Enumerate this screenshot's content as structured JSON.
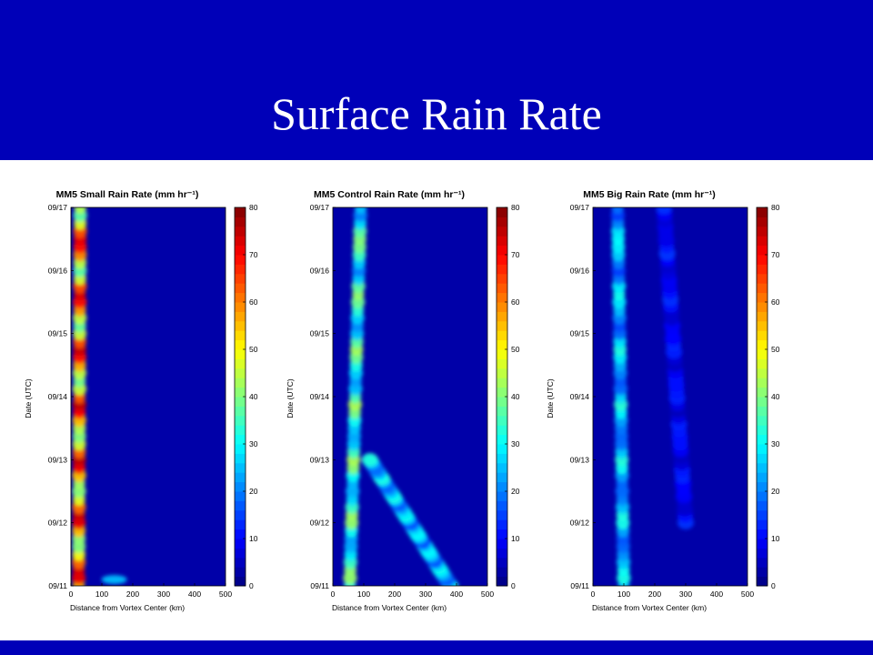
{
  "slide": {
    "title": "Surface Rain Rate",
    "band_color": "#0000b8"
  },
  "chart_data": [
    {
      "type": "heatmap",
      "title": "MM5 Small Rain Rate (mm hr⁻¹)",
      "xlabel": "Distance from Vortex Center (km)",
      "ylabel": "Date (UTC)",
      "xlim": [
        0,
        500
      ],
      "x_ticks": [
        "0",
        "100",
        "200",
        "300",
        "400",
        "500"
      ],
      "y_ticks": [
        "09/11",
        "09/12",
        "09/13",
        "09/14",
        "09/15",
        "09/16",
        "09/17"
      ],
      "colorbar": {
        "min": 0,
        "max": 80,
        "ticks": [
          "0",
          "10",
          "20",
          "30",
          "40",
          "50",
          "60",
          "70",
          "80"
        ]
      },
      "features": [
        {
          "desc": "eyewall band",
          "date": [
            "09/11",
            "09/17"
          ],
          "distance_km": [
            25,
            30
          ],
          "rain_rate": 70
        },
        {
          "desc": "early outer burst",
          "date": "09/11",
          "distance_km": 140,
          "rain_rate": 25
        }
      ]
    },
    {
      "type": "heatmap",
      "title": "MM5 Control Rain Rate (mm hr⁻¹)",
      "xlabel": "Distance from Vortex Center (km)",
      "ylabel": "Date (UTC)",
      "xlim": [
        0,
        500
      ],
      "x_ticks": [
        "0",
        "100",
        "200",
        "300",
        "400",
        "500"
      ],
      "y_ticks": [
        "09/11",
        "09/12",
        "09/13",
        "09/14",
        "09/15",
        "09/16",
        "09/17"
      ],
      "colorbar": {
        "min": 0,
        "max": 80,
        "ticks": [
          "0",
          "10",
          "20",
          "30",
          "40",
          "50",
          "60",
          "70",
          "80"
        ]
      },
      "features": [
        {
          "desc": "eyewall band",
          "date": [
            "09/11",
            "09/17"
          ],
          "distance_km": [
            55,
            90
          ],
          "rain_rate": 40
        },
        {
          "desc": "outward spiral band",
          "date": [
            "09/11",
            "09/13"
          ],
          "distance_km": [
            380,
            120
          ],
          "rain_rate": 30
        }
      ]
    },
    {
      "type": "heatmap",
      "title": "MM5 Big Rain Rate (mm hr⁻¹)",
      "xlabel": "Distance from Vortex Center (km)",
      "ylabel": "Date (UTC)",
      "xlim": [
        0,
        500
      ],
      "x_ticks": [
        "0",
        "100",
        "200",
        "300",
        "400",
        "500"
      ],
      "y_ticks": [
        "09/11",
        "09/12",
        "09/13",
        "09/14",
        "09/15",
        "09/16",
        "09/17"
      ],
      "colorbar": {
        "min": 0,
        "max": 80,
        "ticks": [
          "0",
          "10",
          "20",
          "30",
          "40",
          "50",
          "60",
          "70",
          "80"
        ]
      },
      "features": [
        {
          "desc": "eyewall band",
          "date": [
            "09/11",
            "09/17"
          ],
          "distance_km": [
            100,
            80
          ],
          "rain_rate": 30
        },
        {
          "desc": "faint outer band",
          "date": [
            "09/12",
            "09/17"
          ],
          "distance_km": [
            300,
            230
          ],
          "rain_rate": 12
        }
      ]
    }
  ]
}
